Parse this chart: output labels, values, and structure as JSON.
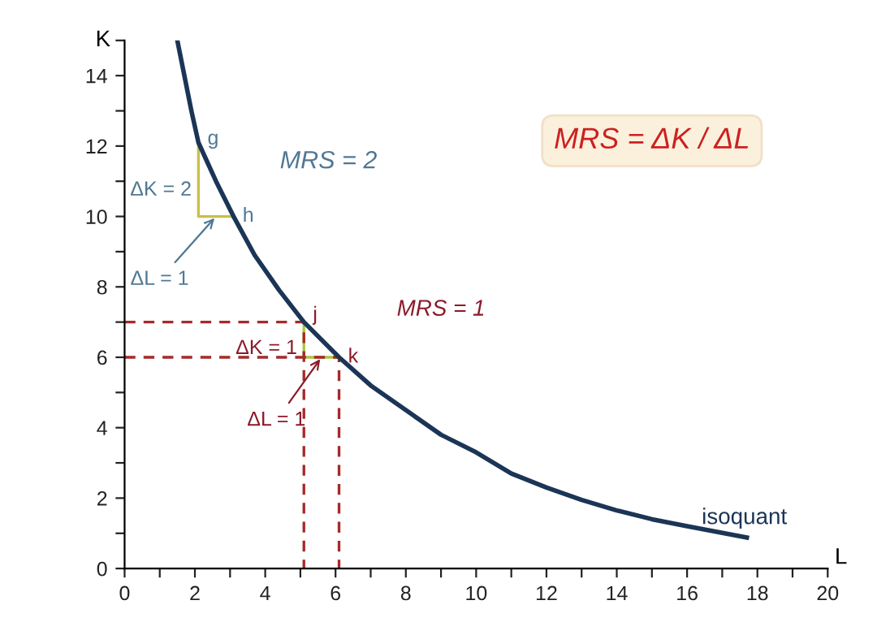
{
  "chart_data": {
    "type": "line",
    "xlabel": "L",
    "ylabel": "K",
    "xlim": [
      0,
      20
    ],
    "ylim": [
      0,
      15
    ],
    "xticks": [
      0,
      {
        "value": 1,
        "label": null
      },
      2,
      {
        "value": 3,
        "label": null
      },
      4,
      {
        "value": 5,
        "label": null
      },
      6,
      {
        "value": 7,
        "label": null
      },
      8,
      {
        "value": 9,
        "label": null
      },
      10,
      {
        "value": 11,
        "label": null
      },
      12,
      {
        "value": 13,
        "label": null
      },
      14,
      {
        "value": 15,
        "label": null
      },
      16,
      {
        "value": 17,
        "label": null
      },
      18,
      {
        "value": 19,
        "label": null
      },
      20
    ],
    "yticks": [
      0,
      {
        "value": 1,
        "label": null
      },
      2,
      {
        "value": 3,
        "label": null
      },
      4,
      {
        "value": 5,
        "label": null
      },
      6,
      {
        "value": 7,
        "label": null
      },
      8,
      {
        "value": 9,
        "label": null
      },
      10,
      {
        "value": 11,
        "label": null
      },
      12,
      {
        "value": 13,
        "label": null
      },
      14,
      {
        "value": 15,
        "label": null
      }
    ],
    "grid": false,
    "marker": "none",
    "series": [
      {
        "name": "isoquant",
        "color": "#1b3556",
        "line_style": "solid",
        "x": [
          1.5,
          1.7,
          1.9,
          2.1,
          2.6,
          3.1,
          3.7,
          4.4,
          5.1,
          6.1,
          7,
          8,
          9,
          10,
          11,
          12,
          13,
          14,
          15,
          16,
          17.7
        ],
        "values": [
          15,
          14,
          13,
          12.1,
          11,
          10,
          8.9,
          7.9,
          7,
          6,
          5.2,
          4.5,
          3.8,
          3.3,
          2.7,
          2.3,
          1.95,
          1.65,
          1.4,
          1.2,
          0.88
        ]
      },
      {
        "color": "#c9bf4a",
        "line_style": "solid",
        "x": [
          2.1,
          2.1,
          3.1
        ],
        "values": [
          12,
          10,
          10
        ]
      },
      {
        "color": "#a9c640",
        "line_style": "solid",
        "x": [
          5.1,
          5.1,
          6.1
        ],
        "values": [
          7,
          6,
          6
        ]
      },
      {
        "color": "#a52a2a",
        "line_style": "dashed",
        "x": [
          0,
          5.1,
          5.1
        ],
        "values": [
          7,
          7,
          0
        ]
      },
      {
        "color": "#a52a2a",
        "line_style": "dashed",
        "x": [
          0,
          6.1,
          6.1
        ],
        "values": [
          6,
          6,
          0
        ]
      }
    ],
    "annotations": [
      {
        "text": "g",
        "x": 2.1,
        "y": 12
      },
      {
        "text": "h",
        "x": 3.1,
        "y": 10
      },
      {
        "text": "ΔK = 2",
        "x": 2.1,
        "y": 11
      },
      {
        "text": "ΔL = 1",
        "x": 2.6,
        "y": 10
      },
      {
        "text": "j",
        "x": 5.1,
        "y": 7
      },
      {
        "text": "k",
        "x": 6.1,
        "y": 6
      },
      {
        "text": "ΔK = 1",
        "x": 5.1,
        "y": 6.5
      },
      {
        "text": "ΔL = 1",
        "x": 5.6,
        "y": 6
      },
      "MRS = 2",
      "MRS = 1",
      "MRS = ΔK / ΔL"
    ]
  }
}
